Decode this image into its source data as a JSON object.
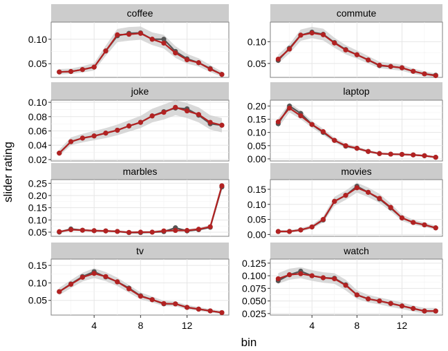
{
  "chart_data": {
    "type": "line",
    "facet_layout": "2 columns x 4 rows, shared x axis",
    "xlabel": "bin",
    "ylabel": "slider rating",
    "x": [
      1,
      2,
      3,
      4,
      5,
      6,
      7,
      8,
      9,
      10,
      11,
      12,
      13,
      14,
      15
    ],
    "xticks": [
      "4",
      "8",
      "12"
    ],
    "xlim": [
      0.3,
      15.6
    ],
    "grid": true,
    "colors": {
      "series_a": "#555555",
      "series_b": "#b22222",
      "ribbon": "#cccccc",
      "strip": "#cccccc"
    },
    "panels": [
      {
        "title": "coffee",
        "ylim": [
          0.022,
          0.135
        ],
        "yticks": [
          "0.05",
          "0.10"
        ],
        "yticks_values": [
          0.05,
          0.1
        ],
        "series": [
          {
            "values": [
              0.033,
              0.034,
              0.038,
              0.043,
              0.076,
              0.107,
              0.112,
              0.113,
              0.1,
              0.1,
              0.075,
              0.06,
              0.052,
              0.04,
              0.028
            ]
          },
          {
            "values": [
              0.033,
              0.034,
              0.038,
              0.043,
              0.076,
              0.109,
              0.11,
              0.112,
              0.1,
              0.092,
              0.072,
              0.058,
              0.052,
              0.039,
              0.028
            ]
          }
        ],
        "ribbon": {
          "lower": [
            0.028,
            0.029,
            0.032,
            0.036,
            0.066,
            0.094,
            0.097,
            0.099,
            0.088,
            0.081,
            0.062,
            0.05,
            0.044,
            0.033,
            0.023
          ],
          "upper": [
            0.039,
            0.04,
            0.045,
            0.051,
            0.087,
            0.121,
            0.125,
            0.126,
            0.114,
            0.109,
            0.086,
            0.07,
            0.061,
            0.047,
            0.034
          ]
        }
      },
      {
        "title": "commute",
        "ylim": [
          0.018,
          0.145
        ],
        "yticks": [
          "0.05",
          "0.10"
        ],
        "yticks_values": [
          0.05,
          0.1
        ],
        "series": [
          {
            "values": [
              0.057,
              0.085,
              0.115,
              0.122,
              0.117,
              0.098,
              0.082,
              0.07,
              0.058,
              0.045,
              0.043,
              0.04,
              0.032,
              0.026,
              0.023
            ]
          },
          {
            "values": [
              0.06,
              0.083,
              0.115,
              0.12,
              0.116,
              0.097,
              0.081,
              0.07,
              0.058,
              0.046,
              0.043,
              0.04,
              0.032,
              0.026,
              0.022
            ]
          }
        ],
        "ribbon": {
          "lower": [
            0.05,
            0.073,
            0.102,
            0.108,
            0.103,
            0.086,
            0.071,
            0.061,
            0.05,
            0.039,
            0.036,
            0.033,
            0.026,
            0.021,
            0.018
          ],
          "upper": [
            0.07,
            0.094,
            0.128,
            0.134,
            0.13,
            0.109,
            0.092,
            0.08,
            0.067,
            0.054,
            0.051,
            0.047,
            0.038,
            0.032,
            0.027
          ]
        }
      },
      {
        "title": "joke",
        "ylim": [
          0.018,
          0.103
        ],
        "yticks": [
          "0.02",
          "0.04",
          "0.06",
          "0.08",
          "0.10"
        ],
        "yticks_values": [
          0.02,
          0.04,
          0.06,
          0.08,
          0.1
        ],
        "series": [
          {
            "values": [
              0.029,
              0.045,
              0.05,
              0.053,
              0.057,
              0.061,
              0.067,
              0.072,
              0.081,
              0.087,
              0.092,
              0.091,
              0.082,
              0.07,
              0.068
            ]
          },
          {
            "values": [
              0.029,
              0.045,
              0.05,
              0.053,
              0.057,
              0.061,
              0.067,
              0.072,
              0.081,
              0.086,
              0.093,
              0.088,
              0.083,
              0.072,
              0.068
            ]
          }
        ],
        "ribbon": {
          "lower": [
            0.025,
            0.04,
            0.044,
            0.047,
            0.05,
            0.054,
            0.059,
            0.064,
            0.072,
            0.076,
            0.082,
            0.078,
            0.072,
            0.062,
            0.058
          ],
          "upper": [
            0.034,
            0.051,
            0.056,
            0.06,
            0.064,
            0.069,
            0.075,
            0.081,
            0.091,
            0.097,
            0.103,
            0.099,
            0.093,
            0.082,
            0.078
          ]
        }
      },
      {
        "title": "laptop",
        "ylim": [
          -0.008,
          0.222
        ],
        "yticks": [
          "0.00",
          "0.05",
          "0.10",
          "0.15",
          "0.20"
        ],
        "yticks_values": [
          0.0,
          0.05,
          0.1,
          0.15,
          0.2
        ],
        "series": [
          {
            "values": [
              0.133,
              0.2,
              0.172,
              0.13,
              0.1,
              0.07,
              0.048,
              0.04,
              0.028,
              0.02,
              0.018,
              0.017,
              0.015,
              0.012,
              0.006
            ]
          },
          {
            "values": [
              0.14,
              0.192,
              0.163,
              0.13,
              0.103,
              0.07,
              0.05,
              0.04,
              0.028,
              0.02,
              0.018,
              0.017,
              0.015,
              0.012,
              0.006
            ]
          }
        ],
        "ribbon": {
          "lower": [
            0.118,
            0.176,
            0.15,
            0.118,
            0.09,
            0.061,
            0.042,
            0.034,
            0.023,
            0.016,
            0.014,
            0.013,
            0.011,
            0.008,
            0.003
          ],
          "upper": [
            0.153,
            0.212,
            0.182,
            0.143,
            0.114,
            0.08,
            0.058,
            0.047,
            0.034,
            0.025,
            0.022,
            0.021,
            0.019,
            0.016,
            0.01
          ]
        }
      },
      {
        "title": "marbles",
        "ylim": [
          0.033,
          0.265
        ],
        "yticks": [
          "0.05",
          "0.10",
          "0.15",
          "0.20",
          "0.25"
        ],
        "yticks_values": [
          0.05,
          0.1,
          0.15,
          0.2,
          0.25
        ],
        "series": [
          {
            "values": [
              0.05,
              0.063,
              0.058,
              0.056,
              0.055,
              0.053,
              0.048,
              0.048,
              0.05,
              0.052,
              0.068,
              0.055,
              0.06,
              0.07,
              0.235
            ]
          },
          {
            "values": [
              0.052,
              0.06,
              0.058,
              0.056,
              0.055,
              0.053,
              0.049,
              0.05,
              0.05,
              0.055,
              0.057,
              0.057,
              0.062,
              0.072,
              0.24
            ]
          }
        ],
        "ribbon": {
          "lower": [
            0.046,
            0.055,
            0.053,
            0.051,
            0.05,
            0.048,
            0.044,
            0.045,
            0.045,
            0.049,
            0.051,
            0.051,
            0.056,
            0.065,
            0.225
          ],
          "upper": [
            0.057,
            0.066,
            0.063,
            0.061,
            0.06,
            0.058,
            0.054,
            0.055,
            0.055,
            0.061,
            0.065,
            0.063,
            0.068,
            0.079,
            0.252
          ]
        }
      },
      {
        "title": "movies",
        "ylim": [
          -0.006,
          0.182
        ],
        "yticks": [
          "0.00",
          "0.05",
          "0.10",
          "0.15"
        ],
        "yticks_values": [
          0.0,
          0.05,
          0.1,
          0.15
        ],
        "series": [
          {
            "values": [
              0.01,
              0.01,
              0.015,
              0.025,
              0.048,
              0.11,
              0.13,
              0.16,
              0.14,
              0.118,
              0.088,
              0.055,
              0.04,
              0.032,
              0.022
            ]
          },
          {
            "values": [
              0.01,
              0.01,
              0.015,
              0.025,
              0.05,
              0.11,
              0.13,
              0.155,
              0.14,
              0.12,
              0.09,
              0.055,
              0.04,
              0.032,
              0.022
            ]
          }
        ],
        "ribbon": {
          "lower": [
            0.006,
            0.006,
            0.01,
            0.019,
            0.04,
            0.095,
            0.115,
            0.139,
            0.124,
            0.105,
            0.077,
            0.045,
            0.032,
            0.025,
            0.016
          ],
          "upper": [
            0.015,
            0.015,
            0.021,
            0.032,
            0.06,
            0.125,
            0.146,
            0.172,
            0.156,
            0.135,
            0.103,
            0.066,
            0.049,
            0.04,
            0.029
          ]
        }
      },
      {
        "title": "tv",
        "ylim": [
          0.008,
          0.168
        ],
        "yticks": [
          "0.05",
          "0.10",
          "0.15"
        ],
        "yticks_values": [
          0.05,
          0.1,
          0.15
        ],
        "series": [
          {
            "values": [
              0.075,
              0.097,
              0.118,
              0.132,
              0.117,
              0.103,
              0.085,
              0.063,
              0.052,
              0.04,
              0.04,
              0.03,
              0.025,
              0.02,
              0.015
            ]
          },
          {
            "values": [
              0.075,
              0.096,
              0.116,
              0.127,
              0.118,
              0.103,
              0.083,
              0.062,
              0.052,
              0.041,
              0.04,
              0.03,
              0.025,
              0.02,
              0.015
            ]
          }
        ],
        "ribbon": {
          "lower": [
            0.065,
            0.085,
            0.104,
            0.114,
            0.105,
            0.091,
            0.072,
            0.053,
            0.044,
            0.034,
            0.033,
            0.024,
            0.02,
            0.015,
            0.011
          ],
          "upper": [
            0.086,
            0.108,
            0.129,
            0.142,
            0.131,
            0.115,
            0.094,
            0.073,
            0.061,
            0.049,
            0.047,
            0.037,
            0.031,
            0.025,
            0.02
          ]
        }
      },
      {
        "title": "watch",
        "ylim": [
          0.022,
          0.133
        ],
        "yticks": [
          "0.025",
          "0.050",
          "0.075",
          "0.100",
          "0.125"
        ],
        "yticks_values": [
          0.025,
          0.05,
          0.075,
          0.1,
          0.125
        ],
        "series": [
          {
            "values": [
              0.09,
              0.102,
              0.109,
              0.1,
              0.096,
              0.095,
              0.082,
              0.062,
              0.054,
              0.05,
              0.045,
              0.04,
              0.035,
              0.03,
              0.03
            ]
          },
          {
            "values": [
              0.094,
              0.102,
              0.104,
              0.1,
              0.096,
              0.094,
              0.081,
              0.062,
              0.054,
              0.05,
              0.045,
              0.04,
              0.035,
              0.03,
              0.03
            ]
          }
        ],
        "ribbon": {
          "lower": [
            0.084,
            0.092,
            0.095,
            0.09,
            0.086,
            0.084,
            0.071,
            0.054,
            0.047,
            0.043,
            0.038,
            0.034,
            0.029,
            0.025,
            0.025
          ],
          "upper": [
            0.105,
            0.114,
            0.117,
            0.111,
            0.107,
            0.105,
            0.092,
            0.071,
            0.062,
            0.057,
            0.052,
            0.047,
            0.041,
            0.036,
            0.036
          ]
        }
      }
    ]
  }
}
